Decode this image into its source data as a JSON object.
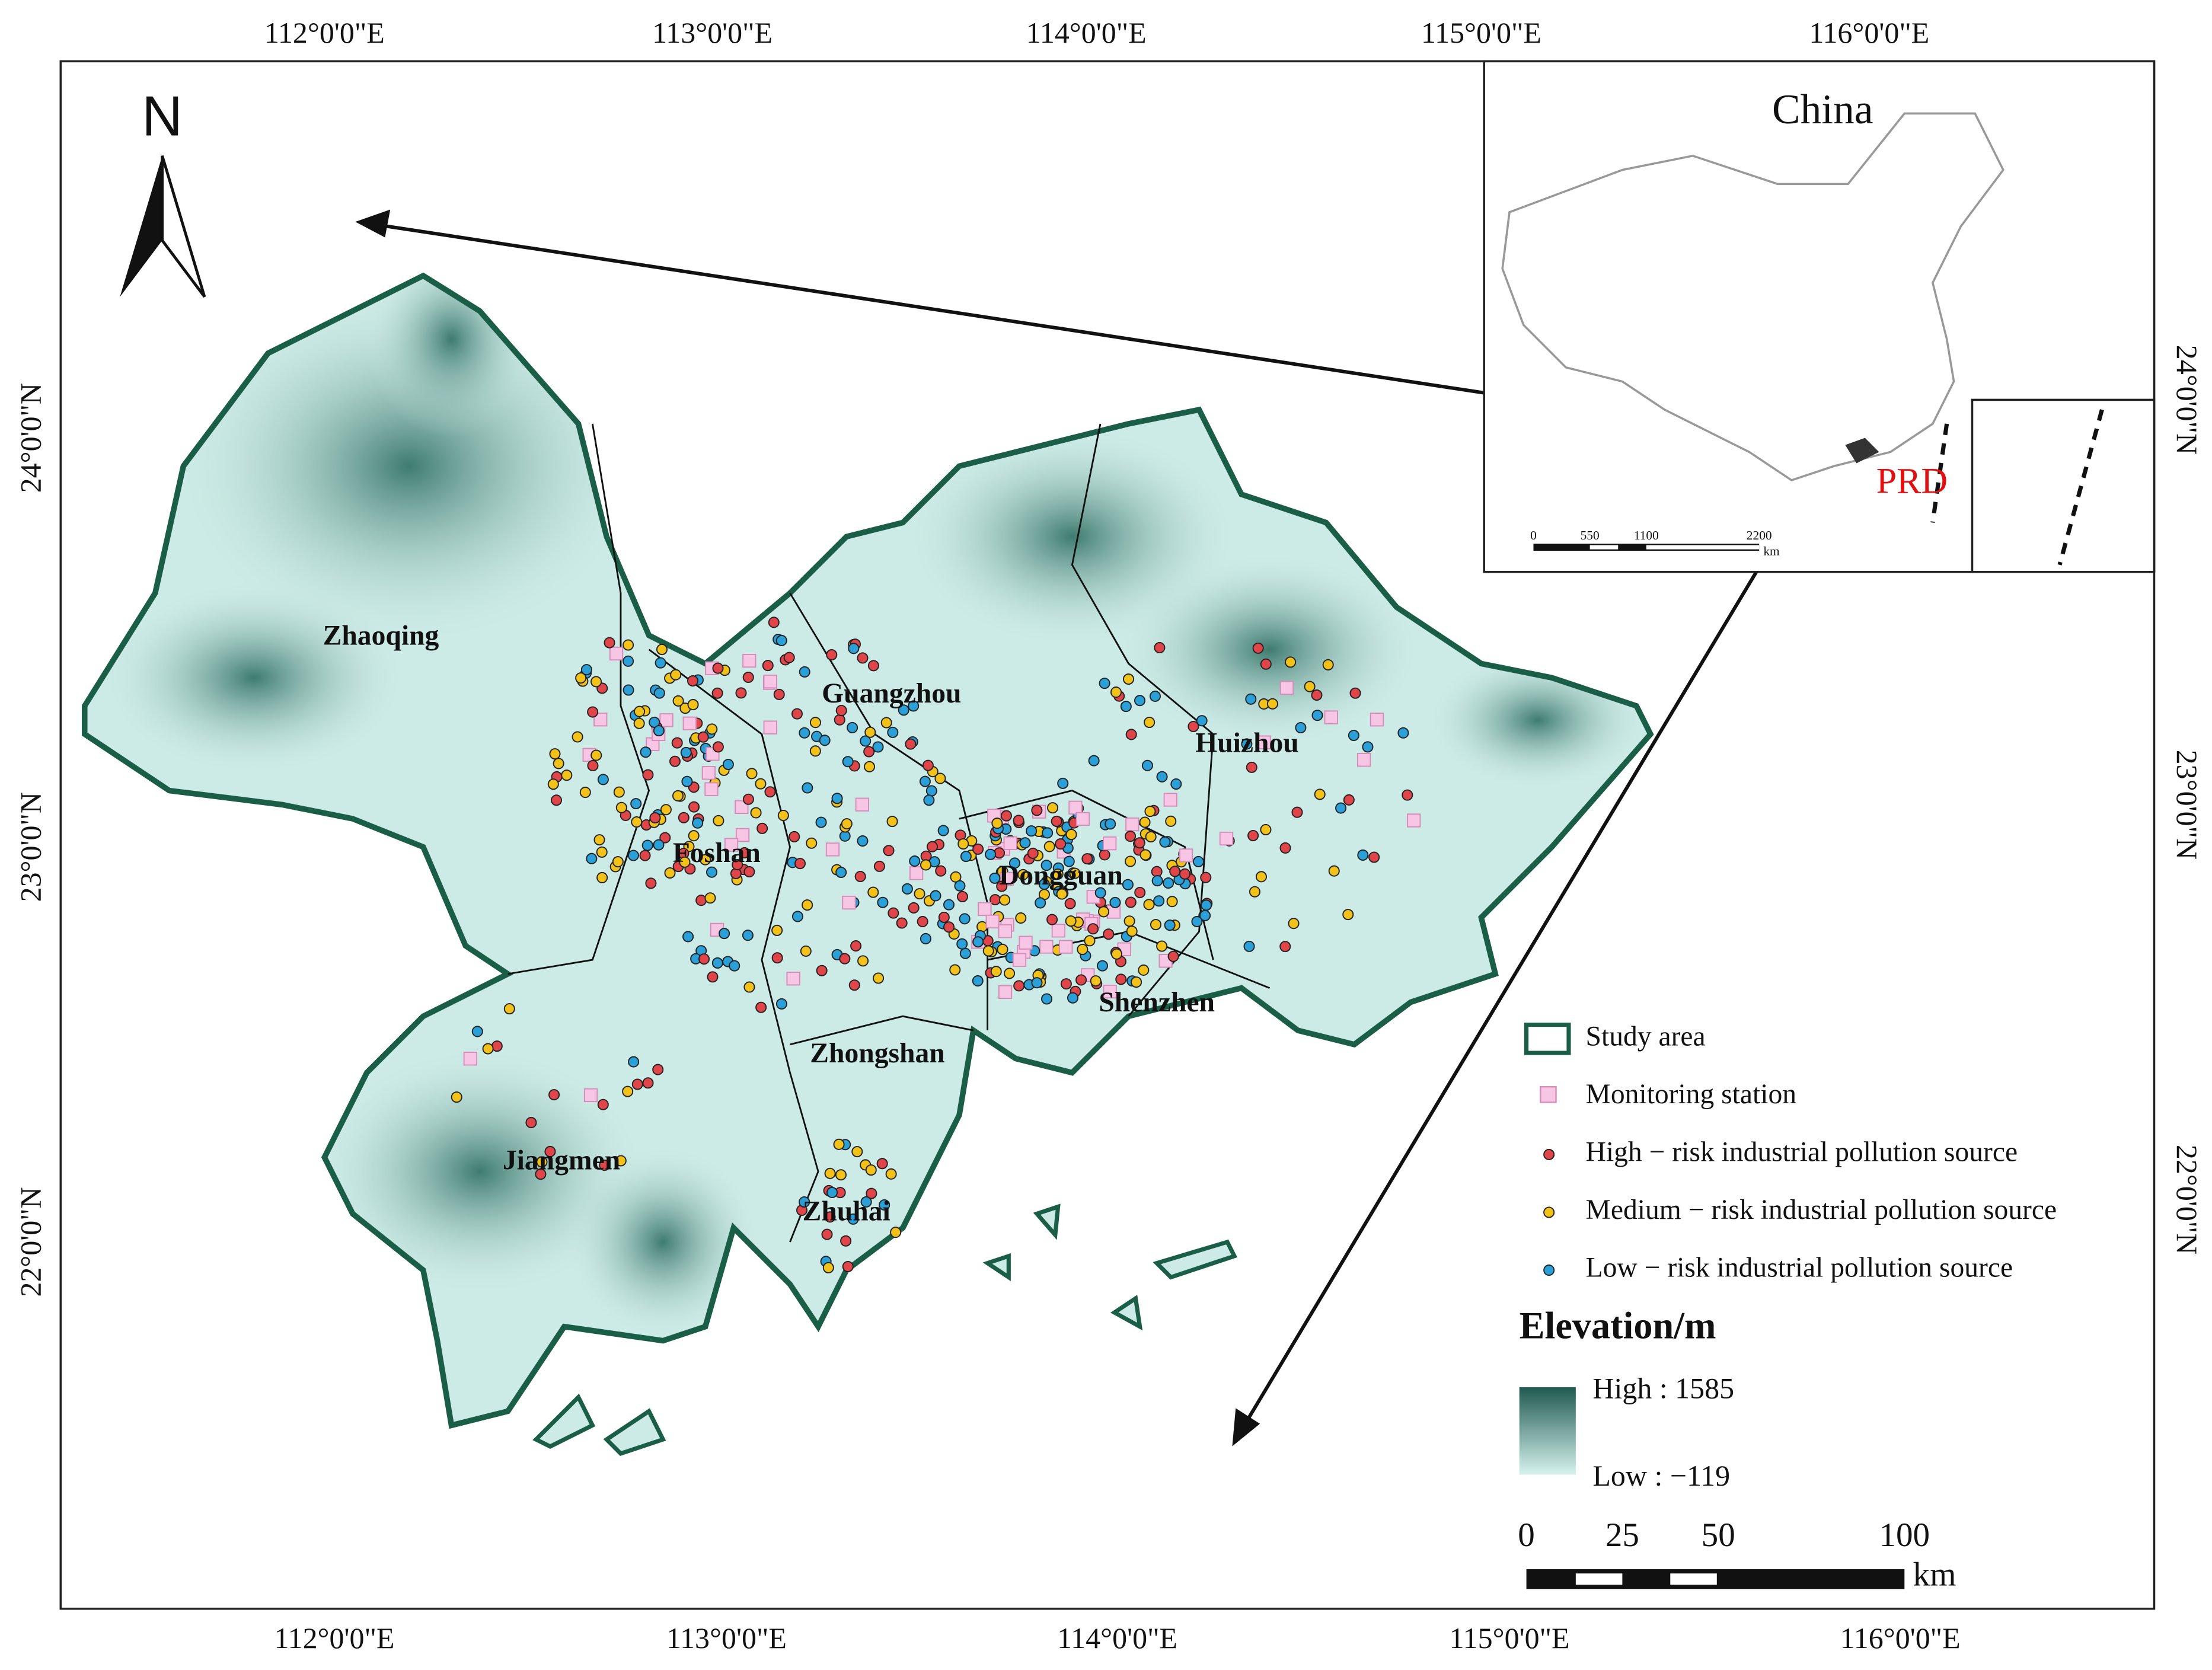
{
  "map": {
    "north": "N",
    "lon_labels_top": [
      "112°0'0\"E",
      "113°0'0\"E",
      "114°0'0\"E",
      "115°0'0\"E",
      "116°0'0\"E"
    ],
    "lon_labels_bottom": [
      "112°0'0\"E",
      "113°0'0\"E",
      "114°0'0\"E",
      "115°0'0\"E",
      "116°0'0\"E"
    ],
    "lat_labels_left": [
      "24°0'0\"N",
      "23°0'0\"N",
      "22°0'0\"N"
    ],
    "lat_labels_right": [
      "24°0'0\"N",
      "23°0'0\"N",
      "22°0'0\"N"
    ],
    "cities": [
      "Zhaoqing",
      "Guangzhou",
      "Huizhou",
      "Foshan",
      "Dongguan",
      "Shenzhen",
      "Zhongshan",
      "Jiangmen",
      "Zhuhai"
    ],
    "inset": {
      "title": "China",
      "region": "PRD",
      "scale_labels": [
        "0",
        "550",
        "1100",
        "2200"
      ],
      "scale_unit": "km"
    },
    "legend": {
      "items": [
        "Study area",
        "Monitoring station",
        "High − risk industrial pollution source",
        "Medium − risk industrial pollution source",
        "Low − risk industrial pollution source"
      ]
    },
    "elevation": {
      "title": "Elevation/m",
      "high": "High : 1585",
      "low": "Low : −119"
    },
    "scale": {
      "labels": [
        "0",
        "25",
        "50",
        "100"
      ],
      "unit": "km"
    }
  }
}
